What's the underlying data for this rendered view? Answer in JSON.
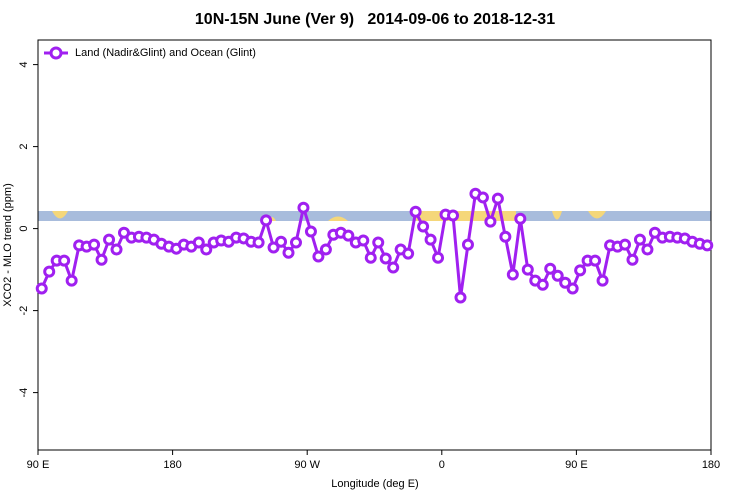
{
  "chart_data": {
    "type": "line",
    "title": "10N-15N June (Ver 9)   2014-09-06 to 2018-12-31",
    "x_label": "Longitude (deg E)",
    "y_label": "XCO2 - MLO trend (ppm)",
    "xlim": [
      90,
      540
    ],
    "ylim": [
      -5.4,
      4.6
    ],
    "xticks": [
      {
        "value": 90,
        "label": "90 E"
      },
      180,
      {
        "value": 270,
        "label": "90 W"
      },
      {
        "value": 360,
        "label": "0"
      },
      {
        "value": 450,
        "label": "90 E"
      },
      {
        "value": 540,
        "label": "180"
      }
    ],
    "yticks": [
      -4,
      -2,
      0,
      2,
      4
    ],
    "legend": "top-left",
    "x": [
      92.5,
      97.5,
      102.5,
      107.5,
      112.5,
      117.5,
      122.5,
      127.5,
      132.5,
      137.5,
      142.5,
      147.5,
      152.5,
      157.5,
      162.5,
      167.5,
      172.5,
      177.5,
      182.5,
      187.5,
      192.5,
      197.5,
      202.5,
      207.5,
      212.5,
      217.5,
      222.5,
      227.5,
      232.5,
      237.5,
      242.5,
      247.5,
      252.5,
      257.5,
      262.5,
      267.5,
      272.5,
      277.5,
      282.5,
      287.5,
      292.5,
      297.5,
      302.5,
      307.5,
      312.5,
      317.5,
      322.5,
      327.5,
      332.5,
      337.5,
      342.5,
      347.5,
      352.5,
      357.5,
      362.5,
      367.5,
      372.5,
      377.5,
      382.5,
      387.5,
      392.5,
      397.5,
      402.5,
      407.5,
      412.5,
      417.5,
      422.5,
      427.5,
      432.5,
      437.5,
      442.5,
      447.5,
      452.5,
      457.5,
      462.5,
      467.5,
      472.5,
      477.5,
      482.5,
      487.5,
      492.5,
      497.5,
      502.5,
      507.5,
      512.5,
      517.5,
      522.5,
      527.5,
      532.5,
      537.5
    ],
    "series": [
      {
        "name": "Land (Nadir&Glint) and Ocean (Glint)",
        "color": "#a020f0",
        "values": [
          -1.46,
          -1.05,
          -0.78,
          -0.78,
          -1.27,
          -0.41,
          -0.44,
          -0.39,
          -0.76,
          -0.27,
          -0.51,
          -0.1,
          -0.22,
          -0.2,
          -0.22,
          -0.27,
          -0.37,
          -0.44,
          -0.49,
          -0.39,
          -0.44,
          -0.34,
          -0.51,
          -0.34,
          -0.29,
          -0.32,
          -0.22,
          -0.24,
          -0.32,
          -0.34,
          0.2,
          -0.46,
          -0.32,
          -0.59,
          -0.34,
          0.51,
          -0.07,
          -0.68,
          -0.51,
          -0.15,
          -0.1,
          -0.17,
          -0.34,
          -0.29,
          -0.71,
          -0.34,
          -0.73,
          -0.95,
          -0.51,
          -0.61,
          0.41,
          0.05,
          -0.27,
          -0.71,
          0.34,
          0.32,
          -1.68,
          -0.39,
          0.85,
          0.76,
          0.17,
          0.73,
          -0.2,
          -1.12,
          0.24,
          -1.0,
          -1.27,
          -1.37,
          -0.98,
          -1.15,
          -1.32,
          -1.46,
          -1.02,
          -0.78,
          -0.78,
          -1.27,
          -0.41,
          -0.44,
          -0.39,
          -0.76,
          -0.27,
          -0.51,
          -0.1,
          -0.22,
          -0.2,
          -0.22,
          -0.24,
          -0.32,
          -0.37,
          -0.41
        ]
      }
    ]
  }
}
